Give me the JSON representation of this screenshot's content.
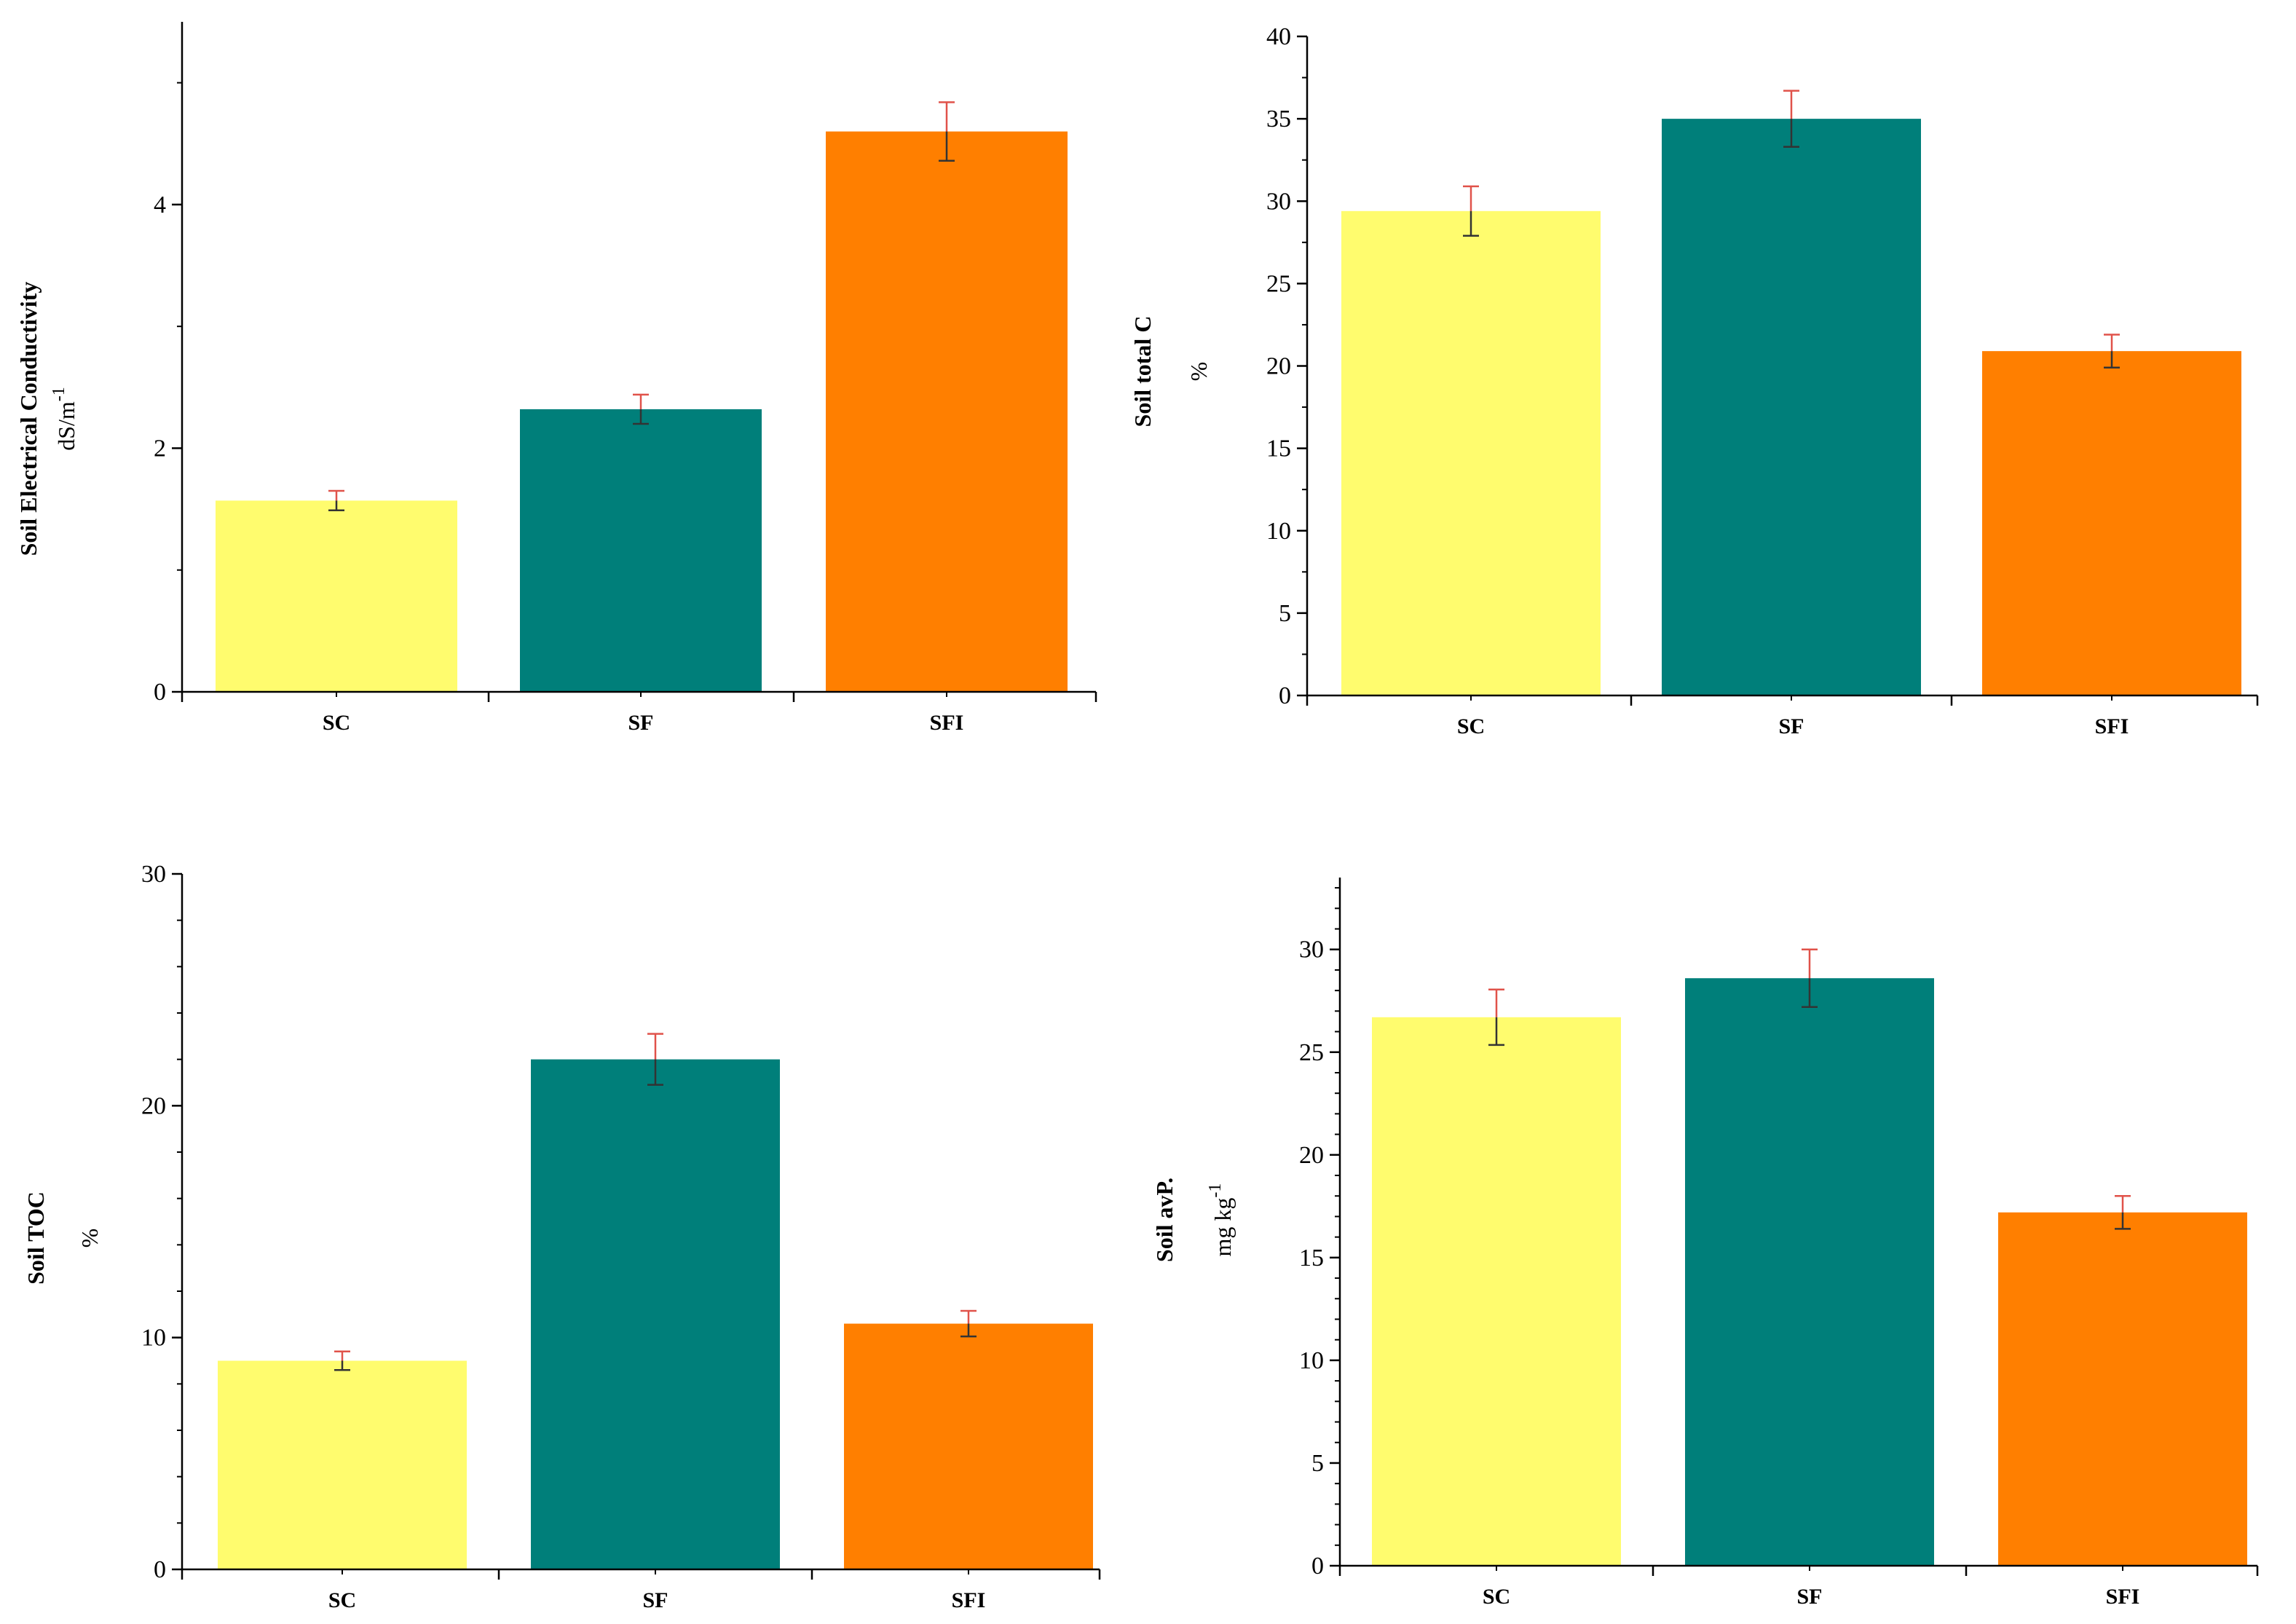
{
  "colors": {
    "SC": "#fffc6e",
    "SF": "#007f7a",
    "SFI": "#ff7f00"
  },
  "chart_data": [
    {
      "type": "bar",
      "title": "",
      "ylabel": "Soil Electrical Conductivity",
      "yunit_base": "dS/m",
      "yunit_sup": "-1",
      "categories": [
        "SC",
        "SF",
        "SFI"
      ],
      "values": [
        1.57,
        2.32,
        4.6
      ],
      "errors": [
        0.08,
        0.12,
        0.24
      ],
      "ylim": [
        0,
        5.5
      ],
      "yticks": [
        0,
        2,
        4
      ],
      "ytick_labels": [
        "0",
        "2",
        "4"
      ],
      "minor_step": 1
    },
    {
      "type": "bar",
      "title": "",
      "ylabel": "Soil total C",
      "yunit_base": "%",
      "yunit_sup": "",
      "categories": [
        "SC",
        "SF",
        "SFI"
      ],
      "values": [
        29.4,
        35.0,
        20.9
      ],
      "errors": [
        1.5,
        1.7,
        1.0
      ],
      "ylim": [
        0,
        40
      ],
      "yticks": [
        0,
        5,
        10,
        15,
        20,
        25,
        30,
        35,
        40
      ],
      "ytick_labels": [
        "0",
        "5",
        "10",
        "15",
        "20",
        "25",
        "30",
        "35",
        "40"
      ],
      "minor_step": 2.5
    },
    {
      "type": "bar",
      "title": "",
      "ylabel": "Soil TOC",
      "yunit_base": "%",
      "yunit_sup": "",
      "categories": [
        "SC",
        "SF",
        "SFI"
      ],
      "values": [
        9.0,
        22.0,
        10.6
      ],
      "errors": [
        0.4,
        1.1,
        0.55
      ],
      "ylim": [
        0,
        30
      ],
      "yticks": [
        0,
        10,
        20,
        30
      ],
      "ytick_labels": [
        "0",
        "10",
        "20",
        "30"
      ],
      "minor_step": 2
    },
    {
      "type": "bar",
      "title": "",
      "ylabel": "Soil avP.",
      "yunit_base": "mg kg",
      "yunit_sup": "-1",
      "categories": [
        "SC",
        "SF",
        "SFI"
      ],
      "values": [
        26.7,
        28.6,
        17.2
      ],
      "errors": [
        1.35,
        1.4,
        0.8
      ],
      "ylim": [
        0,
        33.5
      ],
      "yticks": [
        0,
        5,
        10,
        15,
        20,
        25,
        30
      ],
      "ytick_labels": [
        "0",
        "5",
        "10",
        "15",
        "20",
        "25",
        "30"
      ],
      "minor_step": 1
    }
  ]
}
